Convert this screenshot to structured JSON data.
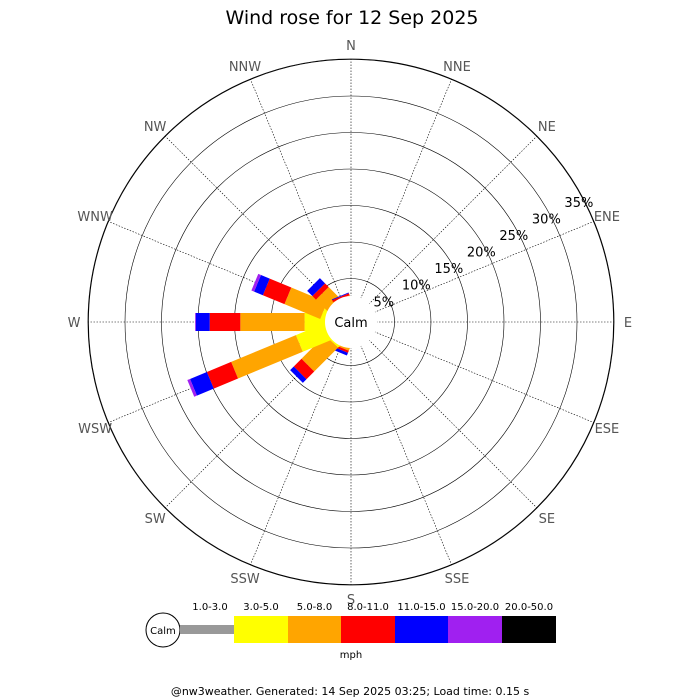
{
  "chart_data": {
    "type": "wind-rose",
    "title": "Wind rose for 12 Sep 2025",
    "directions": [
      "N",
      "NNE",
      "NE",
      "ENE",
      "E",
      "ESE",
      "SE",
      "SSE",
      "S",
      "SSW",
      "SW",
      "WSW",
      "W",
      "WNW",
      "NW",
      "NNW"
    ],
    "radial_ticks": [
      "5%",
      "10%",
      "15%",
      "20%",
      "25%",
      "30%",
      "35%"
    ],
    "radial_max_percent": 35,
    "calm_label": "Calm",
    "speed_bins": [
      {
        "label": "1.0-3.0",
        "color": "#999999"
      },
      {
        "label": "3.0-5.0",
        "color": "#ffff00"
      },
      {
        "label": "5.0-8.0",
        "color": "#ffa500"
      },
      {
        "label": "8.0-11.0",
        "color": "#ff0000"
      },
      {
        "label": "11.0-15.0",
        "color": "#0000ff"
      },
      {
        "label": "15.0-20.0",
        "color": "#a020f0"
      },
      {
        "label": "20.0-50.0",
        "color": "#000000"
      }
    ],
    "units": "mph",
    "series_cumulative_percent": {
      "N": [
        0.3,
        0.9,
        1.5,
        1.7,
        1.8,
        1.8,
        1.8
      ],
      "NNE": [
        0.3,
        0.8,
        1.4,
        1.6,
        1.7,
        1.7,
        1.7
      ],
      "NE": [
        0,
        0,
        0,
        0,
        0,
        0,
        0
      ],
      "ENE": [
        0,
        0,
        0,
        0,
        0,
        0,
        0
      ],
      "E": [
        0,
        0,
        0,
        0,
        0,
        0,
        0
      ],
      "ESE": [
        0,
        0,
        0,
        0,
        0,
        0,
        0
      ],
      "SE": [
        0,
        0,
        0,
        0,
        0,
        0,
        0
      ],
      "SSE": [
        0.5,
        1.0,
        1.6,
        1.8,
        1.9,
        1.9,
        1.9
      ],
      "S": [
        0.5,
        1.0,
        1.6,
        1.8,
        1.9,
        1.9,
        1.9
      ],
      "SSW": [
        0.9,
        1.6,
        2.8,
        3.1,
        3.5,
        3.5,
        3.5
      ],
      "SW": [
        1.3,
        2.8,
        7.4,
        8.9,
        9.6,
        9.6,
        9.6
      ],
      "WSW": [
        2.0,
        6.7,
        16.3,
        19.9,
        22.4,
        22.8,
        22.8
      ],
      "W": [
        1.7,
        5.4,
        14.2,
        18.4,
        20.3,
        20.4,
        20.4
      ],
      "WNW": [
        1.0,
        3.1,
        8.4,
        11.6,
        12.9,
        13.3,
        13.3
      ],
      "NW": [
        0.9,
        2.3,
        4.6,
        5.3,
        6.3,
        6.3,
        6.3
      ],
      "NNW": [
        0.5,
        1.5,
        2.5,
        2.8,
        2.9,
        2.9,
        2.9
      ]
    }
  },
  "legend": {
    "calm_label": "Calm",
    "bin_labels": [
      "1.0-3.0",
      "3.0-5.0",
      "5.0-8.0",
      "8.0-11.0",
      "11.0-15.0",
      "15.0-20.0",
      "20.0-50.0"
    ],
    "units": "mph"
  },
  "footer": "@nw3weather. Generated: 14 Sep 2025 03:25; Load time: 0.15 s"
}
